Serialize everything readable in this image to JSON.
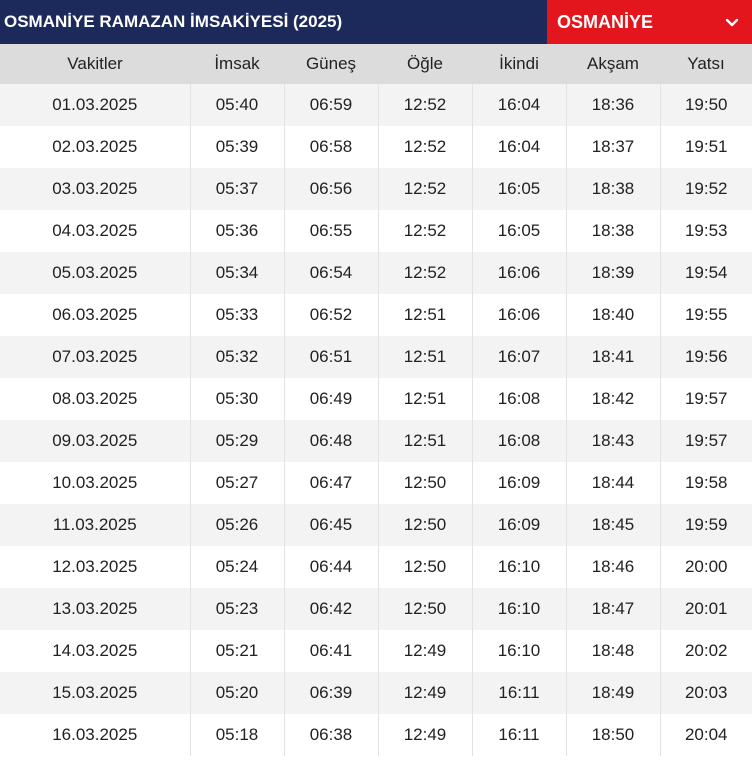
{
  "header": {
    "title": "OSMANİYE RAMAZAN İMSAKİYESİ (2025)",
    "city_selected": "OSMANİYE",
    "dropdown_icon": "chevron-down-icon"
  },
  "colors": {
    "title_bg": "#1b2a5a",
    "select_bg": "#e3161e",
    "header_row_bg": "#dcdcdc",
    "stripe_bg": "#f3f3f3"
  },
  "table": {
    "columns": [
      "Vakitler",
      "İmsak",
      "Güneş",
      "Öğle",
      "İkindi",
      "Akşam",
      "Yatsı"
    ],
    "rows": [
      [
        "01.03.2025",
        "05:40",
        "06:59",
        "12:52",
        "16:04",
        "18:36",
        "19:50"
      ],
      [
        "02.03.2025",
        "05:39",
        "06:58",
        "12:52",
        "16:04",
        "18:37",
        "19:51"
      ],
      [
        "03.03.2025",
        "05:37",
        "06:56",
        "12:52",
        "16:05",
        "18:38",
        "19:52"
      ],
      [
        "04.03.2025",
        "05:36",
        "06:55",
        "12:52",
        "16:05",
        "18:38",
        "19:53"
      ],
      [
        "05.03.2025",
        "05:34",
        "06:54",
        "12:52",
        "16:06",
        "18:39",
        "19:54"
      ],
      [
        "06.03.2025",
        "05:33",
        "06:52",
        "12:51",
        "16:06",
        "18:40",
        "19:55"
      ],
      [
        "07.03.2025",
        "05:32",
        "06:51",
        "12:51",
        "16:07",
        "18:41",
        "19:56"
      ],
      [
        "08.03.2025",
        "05:30",
        "06:49",
        "12:51",
        "16:08",
        "18:42",
        "19:57"
      ],
      [
        "09.03.2025",
        "05:29",
        "06:48",
        "12:51",
        "16:08",
        "18:43",
        "19:57"
      ],
      [
        "10.03.2025",
        "05:27",
        "06:47",
        "12:50",
        "16:09",
        "18:44",
        "19:58"
      ],
      [
        "11.03.2025",
        "05:26",
        "06:45",
        "12:50",
        "16:09",
        "18:45",
        "19:59"
      ],
      [
        "12.03.2025",
        "05:24",
        "06:44",
        "12:50",
        "16:10",
        "18:46",
        "20:00"
      ],
      [
        "13.03.2025",
        "05:23",
        "06:42",
        "12:50",
        "16:10",
        "18:47",
        "20:01"
      ],
      [
        "14.03.2025",
        "05:21",
        "06:41",
        "12:49",
        "16:10",
        "18:48",
        "20:02"
      ],
      [
        "15.03.2025",
        "05:20",
        "06:39",
        "12:49",
        "16:11",
        "18:49",
        "20:03"
      ],
      [
        "16.03.2025",
        "05:18",
        "06:38",
        "12:49",
        "16:11",
        "18:50",
        "20:04"
      ]
    ]
  }
}
